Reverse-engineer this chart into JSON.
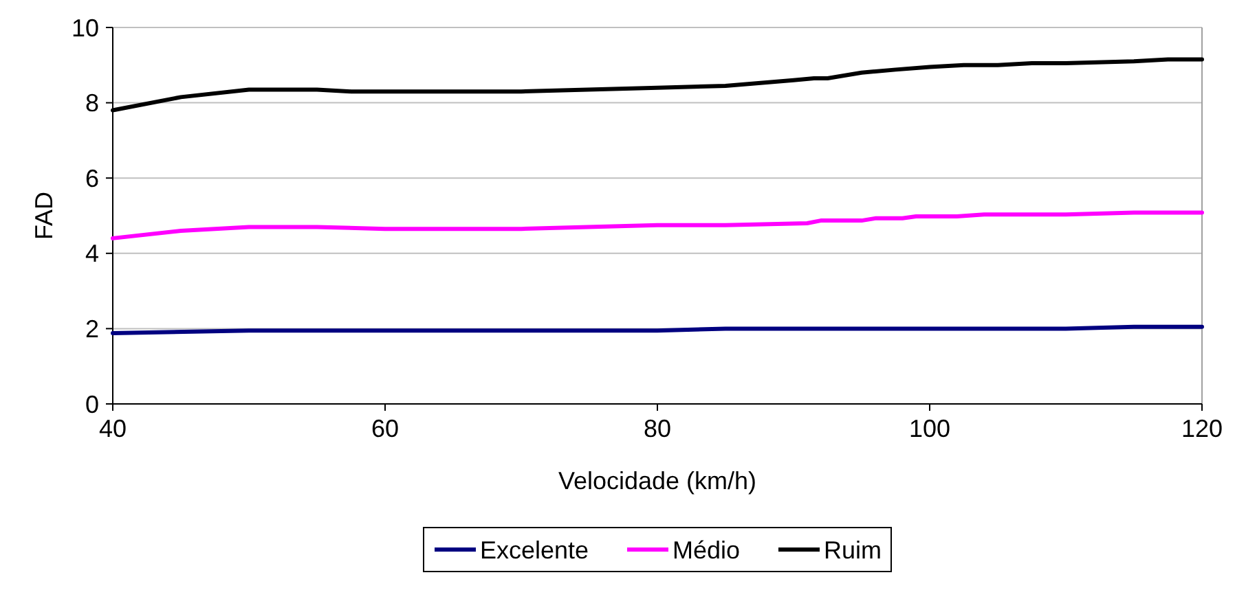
{
  "chart_data": {
    "type": "line",
    "xlabel": "Velocidade (km/h)",
    "ylabel": "FAD",
    "xlim": [
      40,
      120
    ],
    "xticks": [
      40,
      60,
      80,
      100,
      120
    ],
    "ylim": [
      0,
      10
    ],
    "yticks": [
      0,
      2,
      4,
      6,
      8,
      10
    ],
    "grid": "y",
    "legend": "bottom",
    "marker": "none",
    "line_style": "solid",
    "series": [
      {
        "name": "Excelente",
        "color": "#000080",
        "x": [
          40,
          50,
          80,
          85,
          110,
          115,
          120
        ],
        "values": [
          1.88,
          1.95,
          1.95,
          2.0,
          2.0,
          2.05,
          2.05
        ]
      },
      {
        "name": "Médio",
        "color": "#ff00ff",
        "x": [
          40,
          45,
          50,
          55,
          60,
          70,
          80,
          85,
          91,
          92,
          95,
          96,
          98,
          99,
          102,
          104,
          110,
          115,
          120
        ],
        "values": [
          4.4,
          4.6,
          4.7,
          4.7,
          4.65,
          4.65,
          4.75,
          4.75,
          4.8,
          4.87,
          4.87,
          4.93,
          4.93,
          4.98,
          4.98,
          5.03,
          5.03,
          5.08,
          5.08
        ]
      },
      {
        "name": "Ruim",
        "color": "#000000",
        "x": [
          40,
          45,
          50,
          55,
          57.5,
          70,
          80,
          85,
          90,
          91.5,
          92.5,
          95,
          97.5,
          100,
          102.5,
          105,
          107.5,
          110,
          115,
          117.5,
          120
        ],
        "values": [
          7.8,
          8.15,
          8.35,
          8.35,
          8.3,
          8.3,
          8.4,
          8.45,
          8.6,
          8.65,
          8.65,
          8.8,
          8.88,
          8.95,
          9.0,
          9.0,
          9.05,
          9.05,
          9.1,
          9.15,
          9.15
        ]
      }
    ]
  }
}
